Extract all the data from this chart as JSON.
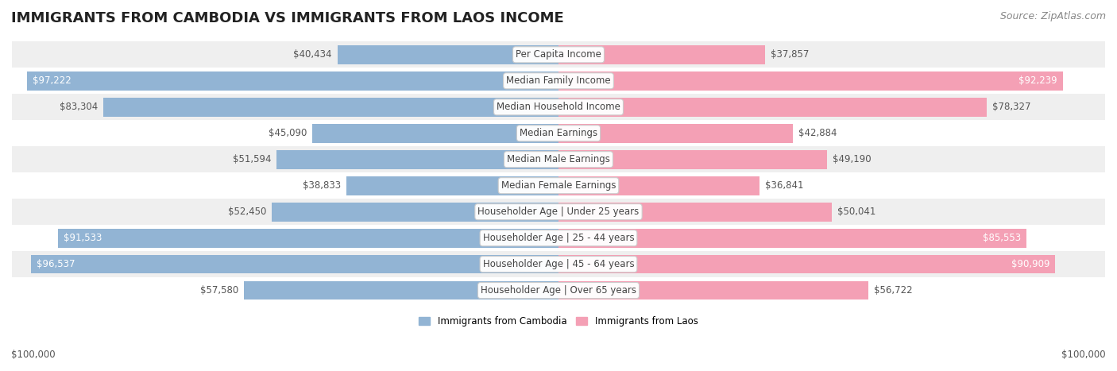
{
  "title": "IMMIGRANTS FROM CAMBODIA VS IMMIGRANTS FROM LAOS INCOME",
  "source": "Source: ZipAtlas.com",
  "categories": [
    "Per Capita Income",
    "Median Family Income",
    "Median Household Income",
    "Median Earnings",
    "Median Male Earnings",
    "Median Female Earnings",
    "Householder Age | Under 25 years",
    "Householder Age | 25 - 44 years",
    "Householder Age | 45 - 64 years",
    "Householder Age | Over 65 years"
  ],
  "cambodia_values": [
    40434,
    97222,
    83304,
    45090,
    51594,
    38833,
    52450,
    91533,
    96537,
    57580
  ],
  "laos_values": [
    37857,
    92239,
    78327,
    42884,
    49190,
    36841,
    50041,
    85553,
    90909,
    56722
  ],
  "cambodia_labels": [
    "$40,434",
    "$97,222",
    "$83,304",
    "$45,090",
    "$51,594",
    "$38,833",
    "$52,450",
    "$91,533",
    "$96,537",
    "$57,580"
  ],
  "laos_labels": [
    "$37,857",
    "$92,239",
    "$78,327",
    "$42,884",
    "$49,190",
    "$36,841",
    "$50,041",
    "$85,553",
    "$90,909",
    "$56,722"
  ],
  "cambodia_color": "#92b4d4",
  "laos_color": "#f4a0b5",
  "max_value": 100000,
  "bar_height": 0.72,
  "row_bg_even": "#efefef",
  "row_bg_odd": "#ffffff",
  "legend_cambodia": "Immigrants from Cambodia",
  "legend_laos": "Immigrants from Laos",
  "xlabel_left": "$100,000",
  "xlabel_right": "$100,000",
  "title_fontsize": 13,
  "source_fontsize": 9,
  "label_fontsize": 8.5,
  "category_fontsize": 8.5
}
